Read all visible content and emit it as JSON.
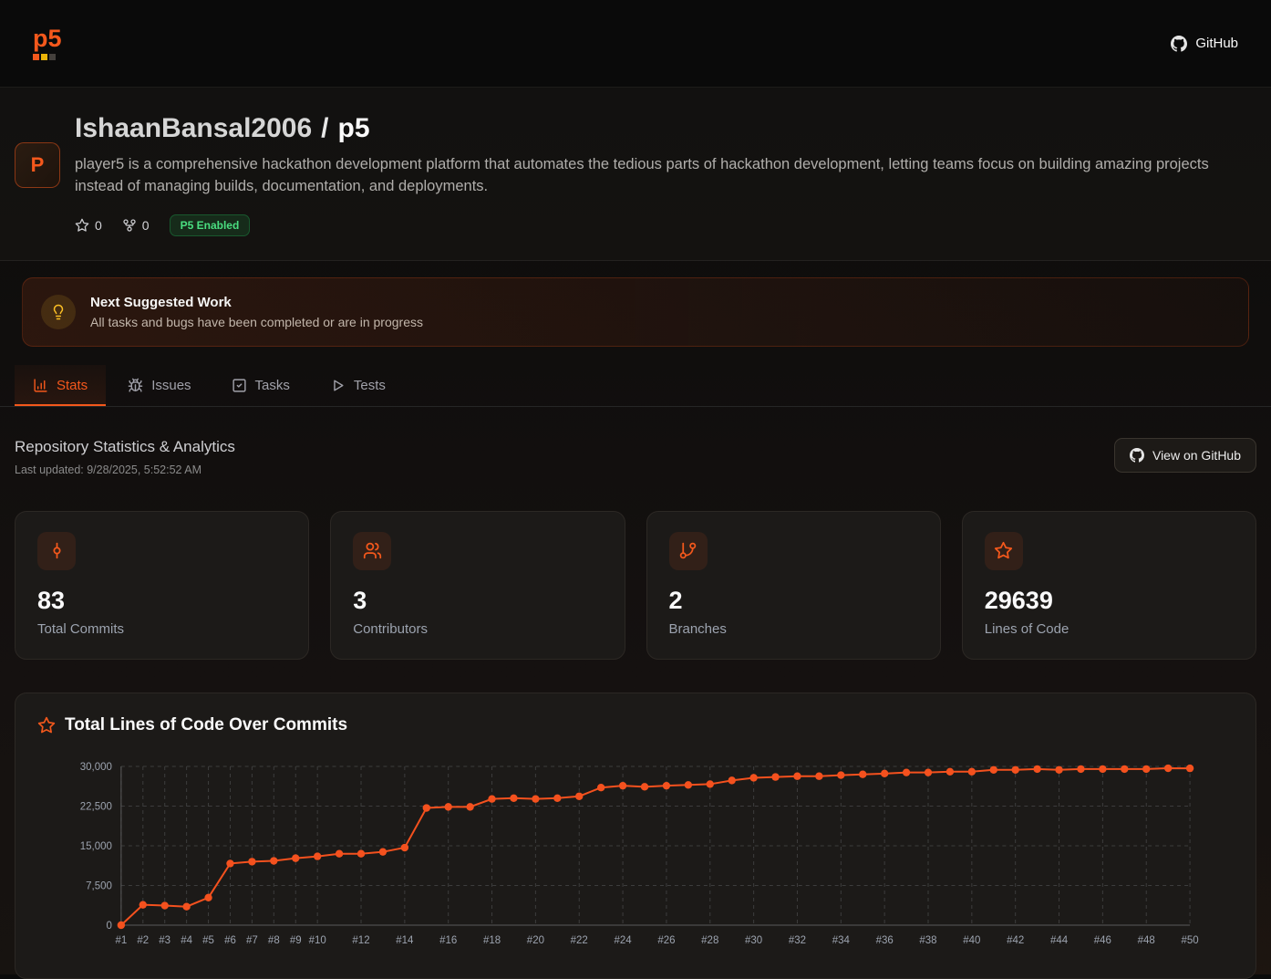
{
  "colors": {
    "accent": "#f4581c",
    "badge_green": "#4ade80",
    "bulb_amber": "#fbbf24",
    "chart_line": "#f4511e"
  },
  "nav": {
    "logo": "p5",
    "github_label": "GitHub"
  },
  "header": {
    "avatar_letter": "P",
    "owner": "IshaanBansal2006",
    "separator": "/",
    "repo": "p5",
    "description": "player5 is a comprehensive hackathon development platform that automates the tedious parts of hackathon development, letting teams focus on building amazing projects instead of managing builds, documentation, and deployments.",
    "stars": "0",
    "forks": "0",
    "badge": "P5 Enabled"
  },
  "notice": {
    "title": "Next Suggested Work",
    "subtitle": "All tasks and bugs have been completed or are in progress"
  },
  "tabs": [
    {
      "label": "Stats",
      "icon": "chart-column-icon",
      "active": true
    },
    {
      "label": "Issues",
      "icon": "bug-icon",
      "active": false
    },
    {
      "label": "Tasks",
      "icon": "check-square-icon",
      "active": false
    },
    {
      "label": "Tests",
      "icon": "play-icon",
      "active": false
    }
  ],
  "section": {
    "title": "Repository Statistics & Analytics",
    "last_updated": "Last updated: 9/28/2025, 5:52:52 AM",
    "view_on_github": "View on GitHub"
  },
  "stats": [
    {
      "value": "83",
      "label": "Total Commits",
      "icon": "git-commit-icon"
    },
    {
      "value": "3",
      "label": "Contributors",
      "icon": "users-icon"
    },
    {
      "value": "2",
      "label": "Branches",
      "icon": "git-branch-icon"
    },
    {
      "value": "29639",
      "label": "Lines of Code",
      "icon": "star-icon"
    }
  ],
  "icons": {
    "github": "octocat-mark",
    "star": "star-outline",
    "fork": "git-fork",
    "lightbulb": "lightbulb-outline"
  },
  "chart_data": {
    "type": "line",
    "title": "Total Lines of Code Over Commits",
    "xlabel": "",
    "ylabel": "",
    "x": [
      1,
      2,
      3,
      4,
      5,
      6,
      7,
      8,
      9,
      10,
      11,
      12,
      13,
      14,
      15,
      16,
      17,
      18,
      19,
      20,
      21,
      22,
      23,
      24,
      25,
      26,
      27,
      28,
      29,
      30,
      31,
      32,
      33,
      34,
      35,
      36,
      37,
      38,
      39,
      40,
      41,
      42,
      43,
      44,
      45,
      46,
      47,
      48,
      49,
      50
    ],
    "values": [
      0,
      3850,
      3700,
      3500,
      5200,
      11650,
      12000,
      12150,
      12650,
      13000,
      13500,
      13500,
      13850,
      14650,
      22150,
      22350,
      22350,
      23850,
      24000,
      23850,
      24000,
      24350,
      26000,
      26350,
      26150,
      26350,
      26500,
      26650,
      27350,
      27850,
      28000,
      28150,
      28150,
      28350,
      28500,
      28650,
      28850,
      28850,
      29000,
      29000,
      29350,
      29350,
      29500,
      29350,
      29500,
      29500,
      29500,
      29500,
      29650,
      29639
    ],
    "ylim": [
      0,
      30000
    ],
    "yticks": [
      0,
      7500,
      15000,
      22500,
      30000
    ],
    "ytick_labels": [
      "0",
      "7,500",
      "15,000",
      "22,500",
      "30,000"
    ],
    "xtick_labels": [
      "#1",
      "#2",
      "#3",
      "#4",
      "#5",
      "#6",
      "#7",
      "#8",
      "#9",
      "#10",
      "#12",
      "#14",
      "#16",
      "#18",
      "#20",
      "#22",
      "#24",
      "#26",
      "#28",
      "#30",
      "#32",
      "#34",
      "#36",
      "#38",
      "#40",
      "#42",
      "#44",
      "#46",
      "#48",
      "#50"
    ],
    "line_color": "#f4511e",
    "grid": "dashed",
    "legend": "none"
  }
}
